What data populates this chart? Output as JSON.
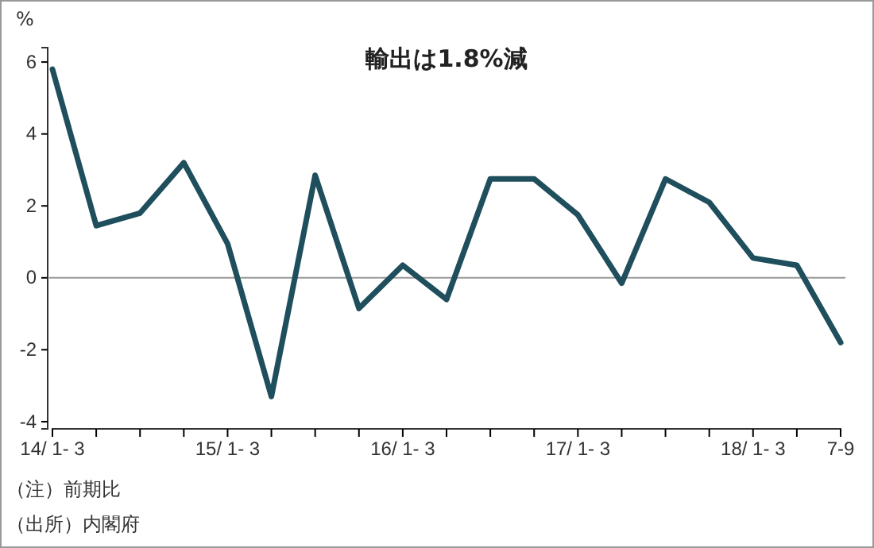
{
  "chart_data": {
    "type": "line",
    "title": "輸出は1.8%減",
    "ylabel": "%",
    "categories": [
      "14/ 1- 3",
      null,
      null,
      null,
      "15/ 1- 3",
      null,
      null,
      null,
      "16/ 1- 3",
      null,
      null,
      null,
      "17/ 1- 3",
      null,
      null,
      null,
      "18/ 1- 3",
      null,
      "7-9"
    ],
    "series": [
      {
        "color": "#1f4e5c",
        "values": [
          5.8,
          1.45,
          1.8,
          3.2,
          0.95,
          -3.3,
          2.85,
          -0.85,
          0.35,
          -0.6,
          2.75,
          2.75,
          1.75,
          -0.15,
          2.75,
          2.1,
          0.55,
          0.35,
          -1.8
        ]
      }
    ],
    "ylim": [
      -4.2,
      6.4
    ],
    "yticks": [
      -4,
      -2,
      0,
      2,
      4,
      6
    ],
    "ref_lines": [
      {
        "axis": "y",
        "value": 0,
        "color": "#999999"
      }
    ],
    "marker": "none",
    "line_style": "solid",
    "grid": false,
    "annotations": [
      "（注）前期比",
      "（出所）内閣府"
    ]
  }
}
